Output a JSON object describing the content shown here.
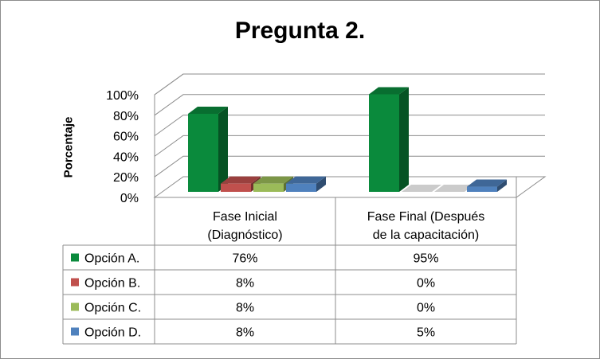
{
  "chart_data": {
    "type": "bar",
    "title": "Pregunta 2.",
    "ylabel": "Porcentaje",
    "xlabel": "",
    "ylim": [
      0,
      100
    ],
    "yticks": [
      "0%",
      "20%",
      "40%",
      "60%",
      "80%",
      "100%"
    ],
    "categories": [
      "Fase Inicial (Diagnóstico)",
      "Fase Final (Después de la capacitación)"
    ],
    "category_lines": [
      [
        "Fase Inicial",
        "(Diagnóstico)"
      ],
      [
        "Fase Final (Después",
        "de la capacitación)"
      ]
    ],
    "series": [
      {
        "name": "Opción A.",
        "values": [
          76,
          95
        ],
        "labels": [
          "76%",
          "95%"
        ],
        "color": "#0a8a3c"
      },
      {
        "name": "Opción B.",
        "values": [
          8,
          0
        ],
        "labels": [
          "8%",
          "0%"
        ],
        "color": "#c0504d"
      },
      {
        "name": "Opción C.",
        "values": [
          8,
          0
        ],
        "labels": [
          "8%",
          "0%"
        ],
        "color": "#9bbb59"
      },
      {
        "name": "Opción D.",
        "values": [
          8,
          5
        ],
        "labels": [
          "8%",
          "5%"
        ],
        "color": "#4f81bd"
      }
    ],
    "grid": true,
    "legend": "data-table",
    "style": "3d-columns"
  }
}
